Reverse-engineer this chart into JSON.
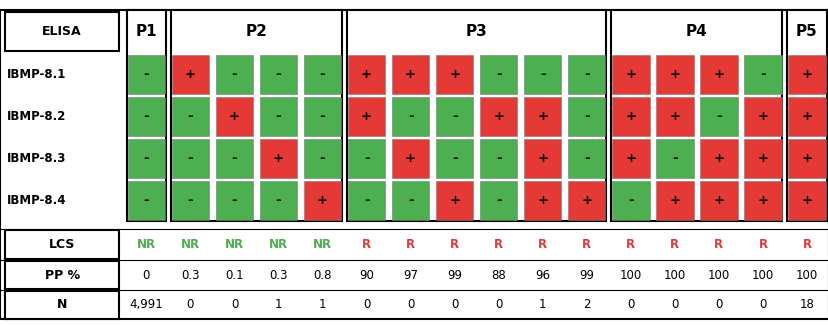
{
  "green_color": "#4CAF50",
  "red_color": "#E53935",
  "group_names": [
    "P1",
    "P2",
    "P3",
    "P4",
    "P5"
  ],
  "group_cols": [
    1,
    4,
    6,
    4,
    1
  ],
  "row_labels": [
    "IBMP-8.1",
    "IBMP-8.2",
    "IBMP-8.3",
    "IBMP-8.4"
  ],
  "groups": {
    "P1": {
      "colors": [
        [
          "green"
        ],
        [
          "green"
        ],
        [
          "green"
        ],
        [
          "green"
        ]
      ],
      "symbols": [
        [
          "-"
        ],
        [
          "-"
        ],
        [
          "-"
        ],
        [
          "-"
        ]
      ],
      "lcs": [
        [
          "NR",
          "green"
        ]
      ],
      "pp": [
        "0"
      ],
      "n": [
        "4,991"
      ]
    },
    "P2": {
      "colors": [
        [
          "red",
          "green",
          "green",
          "green"
        ],
        [
          "green",
          "red",
          "green",
          "green"
        ],
        [
          "green",
          "green",
          "red",
          "green"
        ],
        [
          "green",
          "green",
          "green",
          "red"
        ]
      ],
      "symbols": [
        [
          "+",
          "-",
          "-",
          "-"
        ],
        [
          "-",
          "+",
          "-",
          "-"
        ],
        [
          "-",
          "-",
          "+",
          "-"
        ],
        [
          "-",
          "-",
          "-",
          "+"
        ]
      ],
      "lcs": [
        [
          "NR",
          "green"
        ],
        [
          "NR",
          "green"
        ],
        [
          "NR",
          "green"
        ],
        [
          "NR",
          "green"
        ]
      ],
      "pp": [
        "0.3",
        "0.1",
        "0.3",
        "0.8"
      ],
      "n": [
        "0",
        "0",
        "1",
        "1"
      ]
    },
    "P3": {
      "colors": [
        [
          "red",
          "red",
          "red",
          "green",
          "green",
          "green"
        ],
        [
          "red",
          "green",
          "green",
          "red",
          "red",
          "green"
        ],
        [
          "green",
          "red",
          "green",
          "green",
          "red",
          "green"
        ],
        [
          "green",
          "green",
          "red",
          "green",
          "red",
          "red"
        ]
      ],
      "symbols": [
        [
          "+",
          "+",
          "+",
          "-",
          "-",
          "-"
        ],
        [
          "+",
          "-",
          "-",
          "+",
          "+",
          "-"
        ],
        [
          "-",
          "+",
          "-",
          "-",
          "+",
          "-"
        ],
        [
          "-",
          "-",
          "+",
          "-",
          "+",
          "+"
        ]
      ],
      "lcs": [
        [
          "R",
          "red"
        ],
        [
          "R",
          "red"
        ],
        [
          "R",
          "red"
        ],
        [
          "R",
          "red"
        ],
        [
          "R",
          "red"
        ],
        [
          "R",
          "red"
        ]
      ],
      "pp": [
        "90",
        "97",
        "99",
        "88",
        "96",
        "99"
      ],
      "n": [
        "0",
        "0",
        "0",
        "0",
        "1",
        "2"
      ]
    },
    "P4": {
      "colors": [
        [
          "red",
          "red",
          "red",
          "green"
        ],
        [
          "red",
          "red",
          "green",
          "red"
        ],
        [
          "red",
          "green",
          "red",
          "red"
        ],
        [
          "green",
          "red",
          "red",
          "red"
        ]
      ],
      "symbols": [
        [
          "+",
          "+",
          "+",
          "-"
        ],
        [
          "+",
          "+",
          "-",
          "+"
        ],
        [
          "+",
          "-",
          "+",
          "+"
        ],
        [
          "-",
          "+",
          "+",
          "+"
        ]
      ],
      "lcs": [
        [
          "R",
          "red"
        ],
        [
          "R",
          "red"
        ],
        [
          "R",
          "red"
        ],
        [
          "R",
          "red"
        ]
      ],
      "pp": [
        "100",
        "100",
        "100",
        "100"
      ],
      "n": [
        "0",
        "0",
        "0",
        "0"
      ]
    },
    "P5": {
      "colors": [
        [
          "red"
        ],
        [
          "red"
        ],
        [
          "red"
        ],
        [
          "red"
        ]
      ],
      "symbols": [
        [
          "+"
        ],
        [
          "+"
        ],
        [
          "+"
        ],
        [
          "+"
        ]
      ],
      "lcs": [
        [
          "R",
          "red"
        ]
      ],
      "pp": [
        "100"
      ],
      "n": [
        "18"
      ]
    }
  }
}
